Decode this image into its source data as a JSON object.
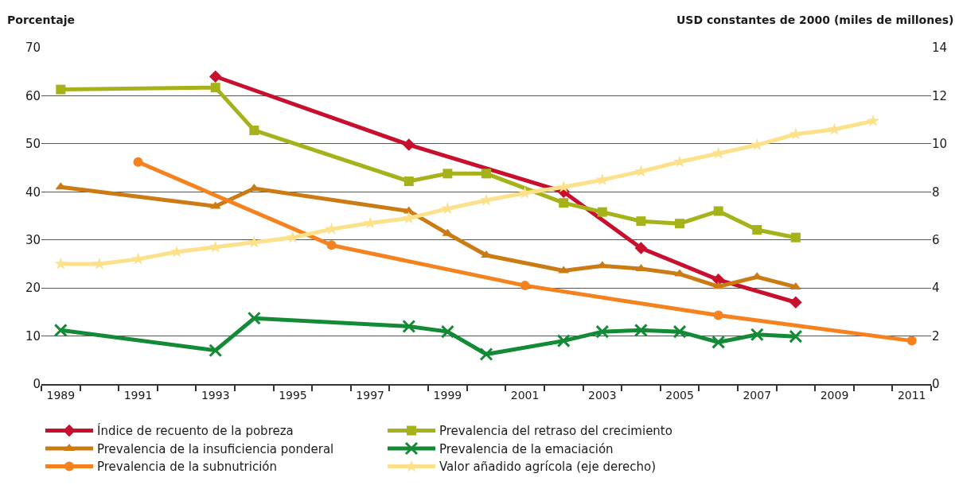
{
  "chart_data": {
    "type": "line",
    "ylabel": "Porcentaje",
    "y2label": "USD constantes de 2000 (miles de millones)",
    "xlim": [
      1988.5,
      2011.5
    ],
    "xticks": [
      {
        "value": 1988.5,
        "label": null
      },
      {
        "value": 1989,
        "label": "1989"
      },
      {
        "value": 1989.5,
        "label": null
      },
      {
        "value": 1990.5,
        "label": null
      },
      {
        "value": 1991,
        "label": "1991"
      },
      {
        "value": 1991.5,
        "label": null
      },
      {
        "value": 1992.5,
        "label": null
      },
      {
        "value": 1993,
        "label": "1993"
      },
      {
        "value": 1993.5,
        "label": null
      },
      {
        "value": 1994.5,
        "label": null
      },
      {
        "value": 1995,
        "label": "1995"
      },
      {
        "value": 1995.5,
        "label": null
      },
      {
        "value": 1996.5,
        "label": null
      },
      {
        "value": 1997,
        "label": "1997"
      },
      {
        "value": 1997.5,
        "label": null
      },
      {
        "value": 1998.5,
        "label": null
      },
      {
        "value": 1999,
        "label": "1999"
      },
      {
        "value": 1999.5,
        "label": null
      },
      {
        "value": 2000.5,
        "label": null
      },
      {
        "value": 2001,
        "label": "2001"
      },
      {
        "value": 2001.5,
        "label": null
      },
      {
        "value": 2002.5,
        "label": null
      },
      {
        "value": 2003,
        "label": "2003"
      },
      {
        "value": 2003.5,
        "label": null
      },
      {
        "value": 2004.5,
        "label": null
      },
      {
        "value": 2005,
        "label": "2005"
      },
      {
        "value": 2005.5,
        "label": null
      },
      {
        "value": 2006.5,
        "label": null
      },
      {
        "value": 2007,
        "label": "2007"
      },
      {
        "value": 2007.5,
        "label": null
      },
      {
        "value": 2008.5,
        "label": null
      },
      {
        "value": 2009,
        "label": "2009"
      },
      {
        "value": 2009.5,
        "label": null
      },
      {
        "value": 2010.5,
        "label": null
      },
      {
        "value": 2011,
        "label": "2011"
      },
      {
        "value": 2011.5,
        "label": null
      }
    ],
    "ylim": [
      0,
      70
    ],
    "yticks": [
      0,
      10,
      20,
      30,
      40,
      50,
      60,
      70
    ],
    "y2lim": [
      0,
      14
    ],
    "y2ticks": [
      0,
      2,
      4,
      6,
      8,
      10,
      12,
      14
    ],
    "grid": "y",
    "legend": "bottom",
    "line_style": "solid",
    "series": [
      {
        "name": "Índice de recuento de la pobreza",
        "color": "#c8102e",
        "marker": "diamond",
        "x": [
          1993,
          1998,
          2002,
          2004,
          2006,
          2008
        ],
        "values": [
          64,
          49.8,
          40,
          28.3,
          21.7,
          17
        ]
      },
      {
        "name": "Prevalencia del retraso del crecimiento",
        "color": "#a5b21a",
        "marker": "square",
        "x": [
          1989,
          1993,
          1994,
          1998,
          1999,
          2000,
          2002,
          2003,
          2004,
          2005,
          2006,
          2007,
          2008
        ],
        "values": [
          61.3,
          61.7,
          52.8,
          42.2,
          43.8,
          43.8,
          37.7,
          35.8,
          33.9,
          33.4,
          36,
          32.1,
          30.5
        ]
      },
      {
        "name": "Prevalencia de la insuficiencia ponderal",
        "color": "#cc7a14",
        "marker": "triangle",
        "x": [
          1989,
          1993,
          1994,
          1998,
          1999,
          2000,
          2002,
          2003,
          2004,
          2005,
          2006,
          2007,
          2008
        ],
        "values": [
          41,
          37,
          40.7,
          36,
          31.3,
          26.8,
          23.6,
          24.6,
          24,
          22.9,
          20.3,
          22.3,
          20.2
        ]
      },
      {
        "name": "Prevalencia de la emaciación",
        "color": "#138a36",
        "marker": "cross",
        "x": [
          1989,
          1993,
          1994,
          1998,
          1999,
          2000,
          2002,
          2003,
          2004,
          2005,
          2006,
          2007,
          2008
        ],
        "values": [
          11.2,
          7,
          13.7,
          12,
          10.9,
          6.2,
          9,
          10.9,
          11.2,
          10.9,
          8.7,
          10.3,
          9.9
        ]
      },
      {
        "name": "Prevalencia de la subnutrición",
        "color": "#f5821f",
        "marker": "circle",
        "x": [
          1991,
          1996,
          2001,
          2006,
          2011
        ],
        "values": [
          46.2,
          28.9,
          20.5,
          14.3,
          9
        ]
      },
      {
        "name": "Valor añadido agrícola (eje derecho)",
        "color": "#fde08a",
        "marker": "star",
        "axis": "y2",
        "x": [
          1989,
          1990,
          1991,
          1992,
          1993,
          1994,
          1995,
          1996,
          1997,
          1998,
          1999,
          2000,
          2001,
          2002,
          2003,
          2004,
          2005,
          2006,
          2007,
          2008,
          2009,
          2010
        ],
        "values": [
          5,
          5,
          5.2,
          5.5,
          5.7,
          5.9,
          6.1,
          6.45,
          6.7,
          6.9,
          7.3,
          7.65,
          7.95,
          8.2,
          8.5,
          8.85,
          9.25,
          9.6,
          9.95,
          10.4,
          10.6,
          10.95
        ]
      }
    ]
  }
}
